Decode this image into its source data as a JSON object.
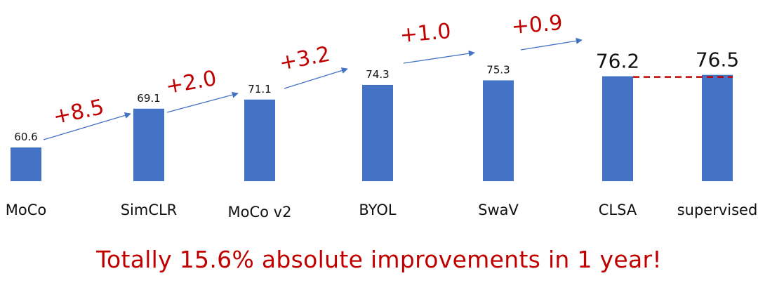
{
  "chart_data": {
    "type": "bar",
    "categories": [
      "MoCo",
      "SimCLR",
      "MoCo v2",
      "BYOL",
      "SwaV",
      "CLSA",
      "supervised"
    ],
    "values": [
      60.6,
      69.1,
      71.1,
      74.3,
      75.3,
      76.2,
      76.5
    ],
    "value_labels": [
      "60.6",
      "69.1",
      "71.1",
      "74.3",
      "75.3",
      "76.2",
      "76.5"
    ],
    "improvements": [
      "+8.5",
      "+2.0",
      "+3.2",
      "+1.0",
      "+0.9"
    ],
    "bar_color": "#4472c4",
    "annotation_color": "#c00000",
    "arrow_color": "#4472c4"
  },
  "caption": "Totally 15.6% absolute improvements in 1 year!"
}
